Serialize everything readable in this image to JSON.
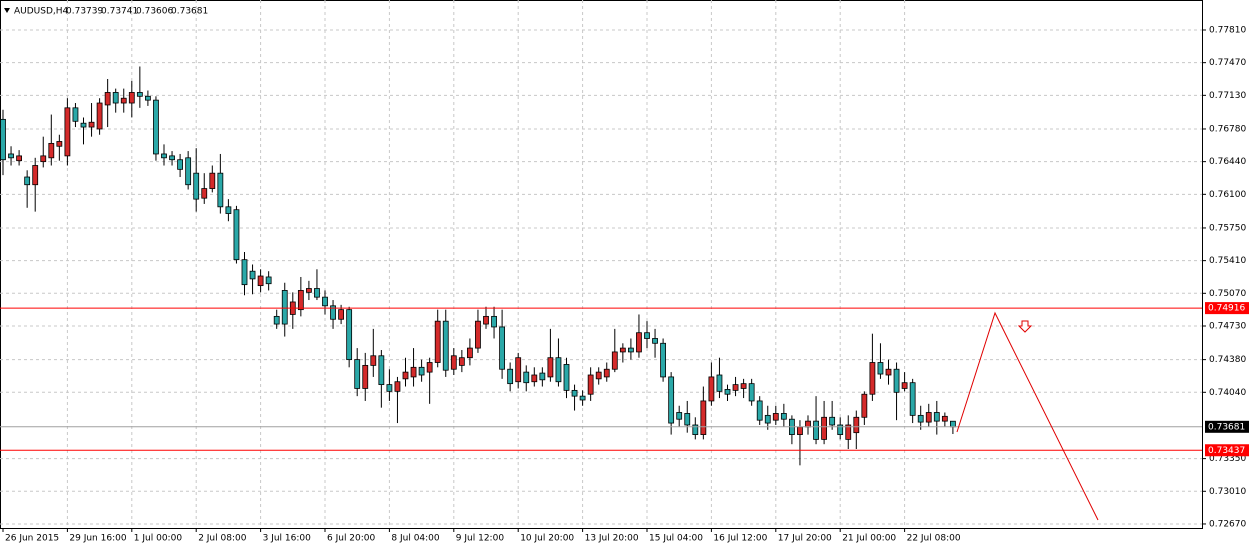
{
  "chart_data": {
    "type": "candlestick",
    "title": "AUDUSD,H4",
    "categories": [
      "26 Jun 2015",
      null,
      null,
      null,
      null,
      null,
      null,
      null,
      "29 Jun 16:00",
      null,
      null,
      null,
      null,
      null,
      null,
      null,
      "1 Jul 00:00",
      null,
      null,
      null,
      null,
      null,
      null,
      null,
      "2 Jul 08:00",
      null,
      null,
      null,
      null,
      null,
      null,
      null,
      "3 Jul 16:00",
      null,
      null,
      null,
      null,
      null,
      null,
      null,
      "6 Jul 20:00",
      null,
      null,
      null,
      null,
      null,
      null,
      null,
      "8 Jul 04:00",
      null,
      null,
      null,
      null,
      null,
      null,
      null,
      "9 Jul 12:00",
      null,
      null,
      null,
      null,
      null,
      null,
      null,
      "10 Jul 20:00",
      null,
      null,
      null,
      null,
      null,
      null,
      null,
      "13 Jul 20:00",
      null,
      null,
      null,
      null,
      null,
      null,
      null,
      "15 Jul 04:00",
      null,
      null,
      null,
      null,
      null,
      null,
      null,
      "16 Jul 12:00",
      null,
      null,
      null,
      null,
      null,
      null,
      null,
      "17 Jul 20:00",
      null,
      null,
      null,
      null,
      null,
      null,
      null,
      "21 Jul 00:00",
      null,
      null,
      null,
      null,
      null,
      null,
      null,
      "22 Jul 08:00",
      null,
      null,
      null,
      null,
      null,
      null
    ],
    "open": [
      0.7688,
      0.7652,
      0.7645,
      0.7628,
      0.762,
      0.7644,
      0.7648,
      0.766,
      0.765,
      0.77,
      0.7684,
      0.768,
      0.7678,
      0.7703,
      0.7716,
      0.7705,
      0.7705,
      0.7716,
      0.7712,
      0.7708,
      0.7652,
      0.765,
      0.7646,
      0.7648,
      0.7632,
      0.7606,
      0.7616,
      0.7632,
      0.7597,
      0.7594,
      0.7542,
      0.753,
      0.7515,
      0.7524,
      0.7483,
      0.751,
      0.7485,
      0.749,
      0.7508,
      0.7512,
      0.7503,
      0.7494,
      0.748,
      0.749,
      0.7438,
      0.7408,
      0.7432,
      0.7442,
      0.7412,
      0.7405,
      0.7418,
      0.742,
      0.743,
      0.7425,
      0.7435,
      0.7478,
      0.7428,
      0.7432,
      0.744,
      0.745,
      0.7475,
      0.7483,
      0.7472,
      0.7428,
      0.7415,
      0.7425,
      0.7415,
      0.7424,
      0.742,
      0.744,
      0.7433,
      0.7406,
      0.74,
      0.7402,
      0.7418,
      0.742,
      0.7428,
      0.7446,
      0.745,
      0.7446,
      0.7466,
      0.746,
      0.7455,
      0.742,
      0.7383,
      0.7382,
      0.737,
      0.736,
      0.7395,
      0.7422,
      0.7407,
      0.7406,
      0.7408,
      0.7413,
      0.7395,
      0.738,
      0.7375,
      0.7382,
      0.7376,
      0.736,
      0.7368,
      0.7374,
      0.7355,
      0.7378,
      0.737,
      0.7355,
      0.7362,
      0.7378,
      0.7402,
      0.7435,
      0.7422,
      0.7428,
      0.7408,
      0.7414,
      0.738,
      0.7373,
      0.7383,
      0.7374,
      0.73739
    ],
    "high": [
      0.7698,
      0.766,
      0.7656,
      0.7635,
      0.7648,
      0.767,
      0.7693,
      0.7672,
      0.771,
      0.7705,
      0.769,
      0.7705,
      0.771,
      0.773,
      0.772,
      0.772,
      0.7728,
      0.7743,
      0.7718,
      0.7712,
      0.7662,
      0.7655,
      0.7652,
      0.7655,
      0.7658,
      0.7632,
      0.764,
      0.7652,
      0.7605,
      0.7598,
      0.755,
      0.7537,
      0.7532,
      0.753,
      0.749,
      0.7518,
      0.7508,
      0.7524,
      0.752,
      0.7532,
      0.751,
      0.75,
      0.7495,
      0.7493,
      0.745,
      0.7445,
      0.747,
      0.7448,
      0.7428,
      0.742,
      0.744,
      0.745,
      0.7438,
      0.744,
      0.749,
      0.749,
      0.745,
      0.7448,
      0.746,
      0.749,
      0.7493,
      0.7493,
      0.749,
      0.7435,
      0.7445,
      0.7432,
      0.743,
      0.743,
      0.747,
      0.746,
      0.744,
      0.7412,
      0.7406,
      0.743,
      0.743,
      0.7435,
      0.747,
      0.7455,
      0.746,
      0.7485,
      0.7478,
      0.747,
      0.746,
      0.7425,
      0.739,
      0.7395,
      0.7378,
      0.741,
      0.7435,
      0.744,
      0.7412,
      0.742,
      0.7418,
      0.7418,
      0.74,
      0.739,
      0.739,
      0.7392,
      0.738,
      0.7375,
      0.738,
      0.74,
      0.7395,
      0.7395,
      0.7378,
      0.738,
      0.7385,
      0.7405,
      0.7465,
      0.7455,
      0.7438,
      0.7435,
      0.7425,
      0.7418,
      0.739,
      0.7392,
      0.7395,
      0.7383,
      0.73741
    ],
    "low": [
      0.763,
      0.764,
      0.764,
      0.7596,
      0.7592,
      0.7638,
      0.764,
      0.7645,
      0.764,
      0.768,
      0.7662,
      0.767,
      0.7672,
      0.768,
      0.7695,
      0.7695,
      0.769,
      0.77,
      0.7702,
      0.7645,
      0.764,
      0.764,
      0.7628,
      0.7615,
      0.7592,
      0.76,
      0.7612,
      0.759,
      0.7582,
      0.7538,
      0.7505,
      0.7506,
      0.7508,
      0.751,
      0.747,
      0.7462,
      0.747,
      0.7483,
      0.75,
      0.75,
      0.7485,
      0.747,
      0.7475,
      0.743,
      0.74,
      0.7395,
      0.742,
      0.7388,
      0.7395,
      0.7372,
      0.741,
      0.741,
      0.7415,
      0.7392,
      0.743,
      0.742,
      0.7422,
      0.7425,
      0.7432,
      0.7445,
      0.747,
      0.746,
      0.7418,
      0.7405,
      0.7408,
      0.7405,
      0.741,
      0.741,
      0.7415,
      0.741,
      0.7398,
      0.7385,
      0.739,
      0.7395,
      0.7412,
      0.7415,
      0.7425,
      0.7435,
      0.7438,
      0.744,
      0.745,
      0.744,
      0.7415,
      0.736,
      0.7368,
      0.7362,
      0.7355,
      0.7355,
      0.739,
      0.7398,
      0.7395,
      0.74,
      0.7398,
      0.739,
      0.737,
      0.7365,
      0.737,
      0.7368,
      0.735,
      0.7328,
      0.736,
      0.735,
      0.735,
      0.7365,
      0.7355,
      0.7345,
      0.7345,
      0.737,
      0.7395,
      0.7418,
      0.7412,
      0.7375,
      0.7405,
      0.7372,
      0.7365,
      0.7368,
      0.736,
      0.7368,
      0.73606
    ],
    "close": [
      0.7646,
      0.7648,
      0.765,
      0.762,
      0.764,
      0.765,
      0.7663,
      0.7665,
      0.77,
      0.7686,
      0.768,
      0.7685,
      0.7705,
      0.7716,
      0.7705,
      0.771,
      0.7716,
      0.7712,
      0.7708,
      0.7652,
      0.7648,
      0.7646,
      0.7636,
      0.762,
      0.7605,
      0.7616,
      0.7632,
      0.7597,
      0.759,
      0.7542,
      0.7516,
      0.7522,
      0.7525,
      0.7517,
      0.7475,
      0.7475,
      0.7498,
      0.751,
      0.7512,
      0.7503,
      0.7494,
      0.748,
      0.749,
      0.7438,
      0.7408,
      0.7432,
      0.7442,
      0.7412,
      0.7405,
      0.7415,
      0.7425,
      0.743,
      0.7422,
      0.7435,
      0.7478,
      0.7427,
      0.7442,
      0.744,
      0.745,
      0.7478,
      0.7483,
      0.7472,
      0.7428,
      0.7413,
      0.744,
      0.7414,
      0.7422,
      0.7417,
      0.744,
      0.7415,
      0.7406,
      0.74,
      0.7396,
      0.7422,
      0.7425,
      0.7428,
      0.7446,
      0.745,
      0.7446,
      0.7466,
      0.746,
      0.7455,
      0.742,
      0.7372,
      0.7376,
      0.737,
      0.736,
      0.7395,
      0.742,
      0.7405,
      0.7402,
      0.7412,
      0.7413,
      0.7395,
      0.7375,
      0.7372,
      0.7382,
      0.7376,
      0.736,
      0.7368,
      0.7374,
      0.7355,
      0.7378,
      0.737,
      0.736,
      0.737,
      0.7378,
      0.7402,
      0.7435,
      0.7423,
      0.7428,
      0.7404,
      0.7414,
      0.738,
      0.7373,
      0.7383,
      0.7374,
      0.7379,
      0.73681
    ],
    "up_color": "#d42a2a",
    "down_color": "#2aa8a8",
    "levels": [
      0.74916,
      0.73437
    ],
    "level_color": "#ff0000",
    "ylim": [
      0.72628,
      0.78122
    ],
    "yticks": [
      {
        "value": 0.7781,
        "label": "0.77810"
      },
      {
        "value": 0.7747,
        "label": "0.77470"
      },
      {
        "value": 0.7713,
        "label": "0.77130"
      },
      {
        "value": 0.7678,
        "label": "0.76780"
      },
      {
        "value": 0.7644,
        "label": "0.76440"
      },
      {
        "value": 0.761,
        "label": "0.76100"
      },
      {
        "value": 0.7575,
        "label": "0.75750"
      },
      {
        "value": 0.7541,
        "label": "0.75410"
      },
      {
        "value": 0.7507,
        "label": "0.75070"
      },
      {
        "value": 0.7473,
        "label": "0.74730"
      },
      {
        "value": 0.7438,
        "label": "0.74380"
      },
      {
        "value": 0.7404,
        "label": "0.74040"
      },
      {
        "value": 0.7335,
        "label": "0.73350"
      },
      {
        "value": 0.7301,
        "label": "0.73010"
      },
      {
        "value": 0.7267,
        "label": "0.72670"
      }
    ],
    "grid": true
  }
}
